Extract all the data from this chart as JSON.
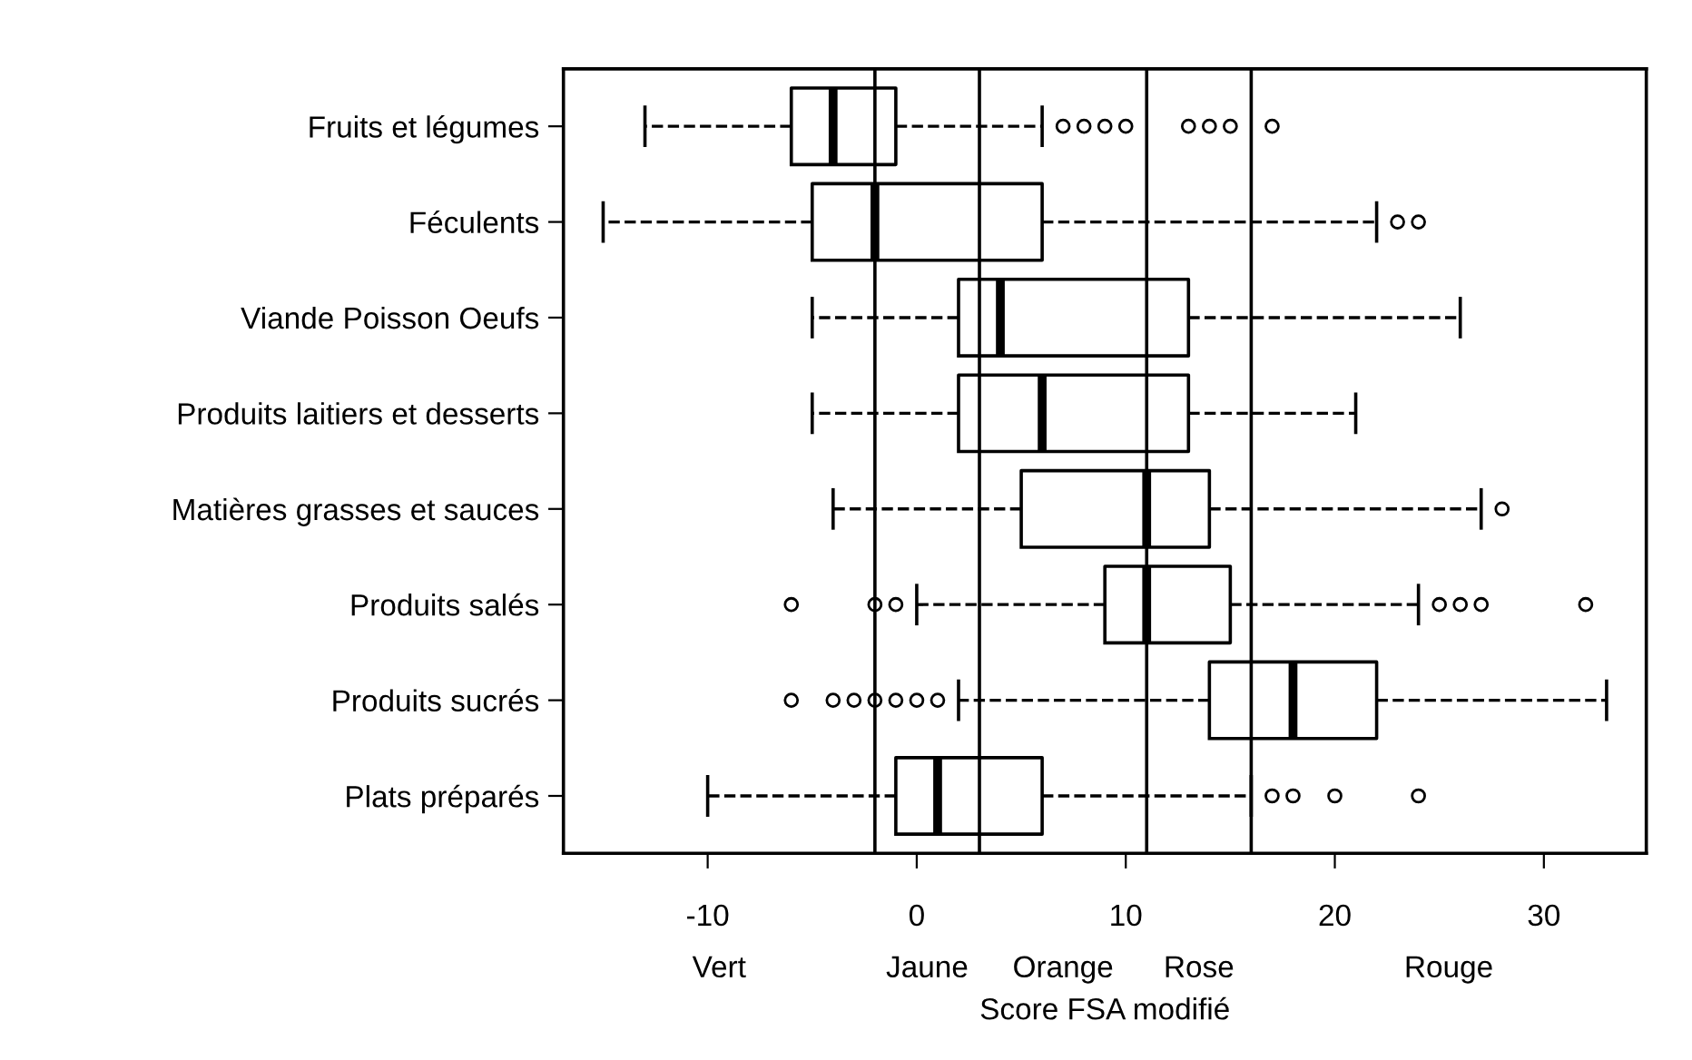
{
  "chart_data": {
    "type": "box",
    "orientation": "horizontal",
    "xlabel": "Score FSA modifié",
    "categories": [
      "Fruits et légumes",
      "Féculents",
      "Viande Poisson Oeufs",
      "Produits laitiers et desserts",
      "Matières grasses et sauces",
      "Produits salés",
      "Produits sucrés",
      "Plats préparés"
    ],
    "boxes": [
      {
        "low": -13,
        "q1": -6,
        "median": -4,
        "q3": -1,
        "high": 6,
        "outliers": [
          7,
          8,
          9,
          10,
          13,
          14,
          15,
          17
        ]
      },
      {
        "low": -15,
        "q1": -5,
        "median": -2,
        "q3": 6,
        "high": 22,
        "outliers": [
          23,
          24
        ]
      },
      {
        "low": -5,
        "q1": 2,
        "median": 4,
        "q3": 13,
        "high": 26
      },
      {
        "low": -5,
        "q1": 2,
        "median": 6,
        "q3": 13,
        "high": 21
      },
      {
        "low": -4,
        "q1": 5,
        "median": 11,
        "q3": 14,
        "high": 27,
        "outliers": [
          28
        ]
      },
      {
        "low": 0,
        "q1": 9,
        "median": 11,
        "q3": 15,
        "high": 24,
        "outliers": [
          -6,
          -2,
          -1,
          25,
          26,
          27,
          32
        ]
      },
      {
        "low": 2,
        "q1": 14,
        "median": 18,
        "q3": 22,
        "high": 33,
        "outliers": [
          -6,
          -4,
          -3,
          -2,
          -1,
          0,
          1
        ]
      },
      {
        "low": -10,
        "q1": -1,
        "median": 1,
        "q3": 6,
        "high": 16,
        "outliers": [
          17,
          18,
          20,
          24
        ]
      }
    ],
    "xlim": [
      -16.9,
      34.9
    ],
    "xticks": [
      -10,
      0,
      10,
      20,
      30
    ],
    "ref_lines": [
      {
        "axis": "x",
        "value": -2
      },
      {
        "axis": "x",
        "value": 3
      },
      {
        "axis": "x",
        "value": 11
      },
      {
        "axis": "x",
        "value": 16
      }
    ],
    "annotations": [
      "Vert",
      "Jaune",
      "Orange",
      "Rose",
      "Rouge"
    ],
    "grid": false
  }
}
